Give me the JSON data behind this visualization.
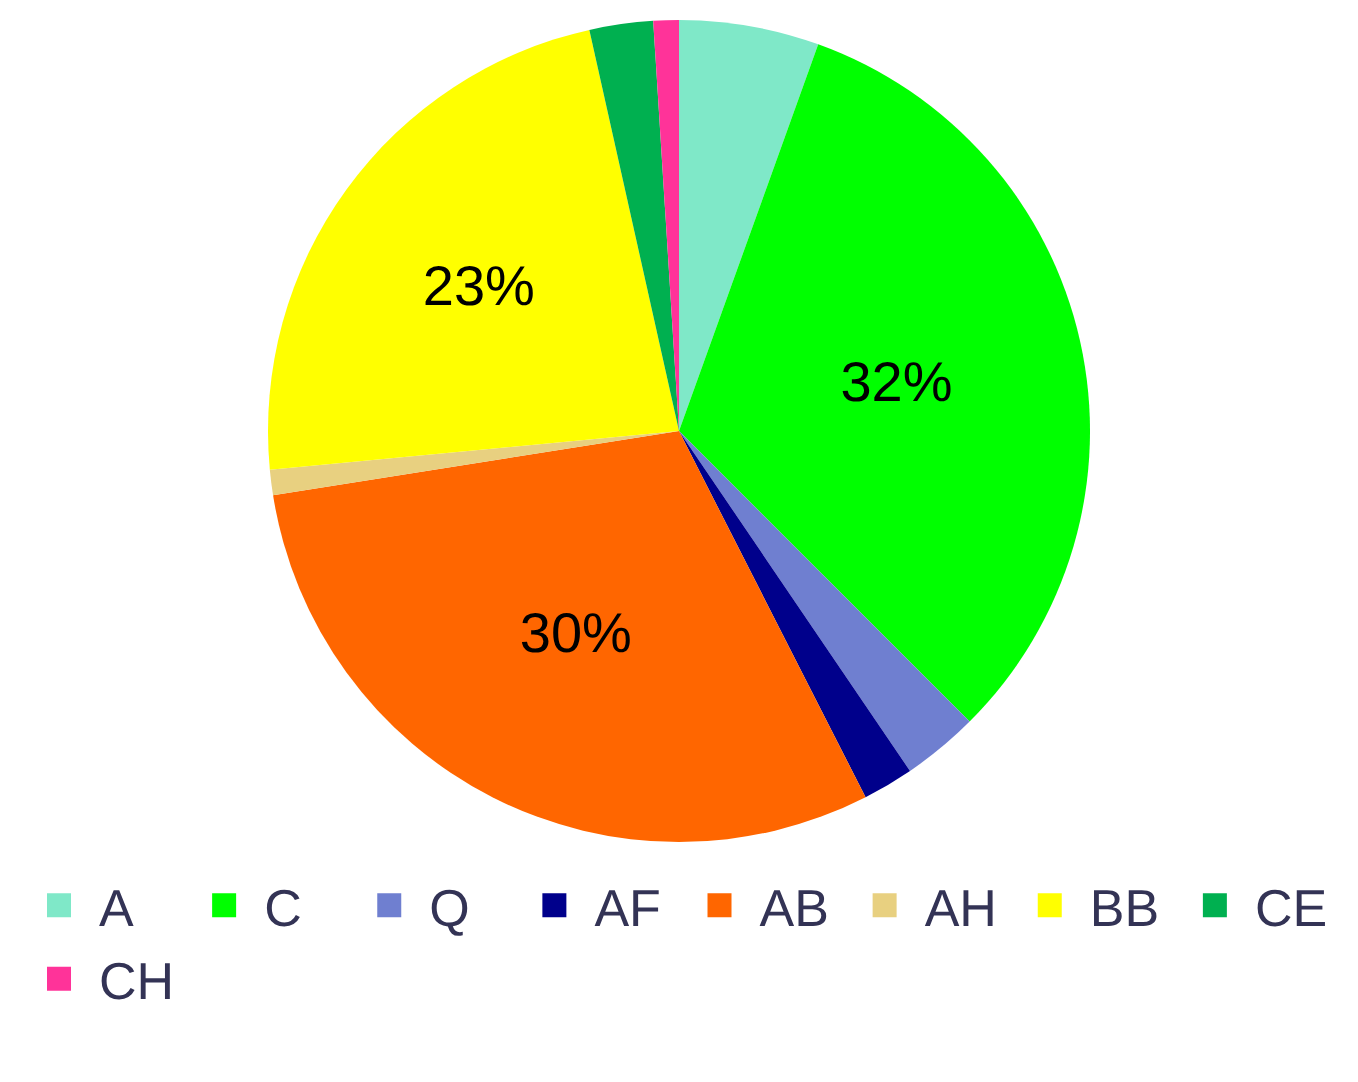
{
  "chart_data": {
    "type": "pie",
    "categories": [
      "A",
      "C",
      "Q",
      "AF",
      "AB",
      "AH",
      "BB",
      "CE",
      "CH"
    ],
    "values": [
      5.5,
      32,
      3,
      2,
      30,
      1,
      23,
      2.5,
      1
    ],
    "value_labels": [
      null,
      "32%",
      null,
      null,
      "30%",
      null,
      "23%",
      null,
      null
    ],
    "colors": [
      "#7fe8c8",
      "#00ff00",
      "#6f7fd0",
      "#00008b",
      "#ff6600",
      "#e8d080",
      "#ffff00",
      "#00b050",
      "#ff3399"
    ],
    "legend": "bottom"
  }
}
